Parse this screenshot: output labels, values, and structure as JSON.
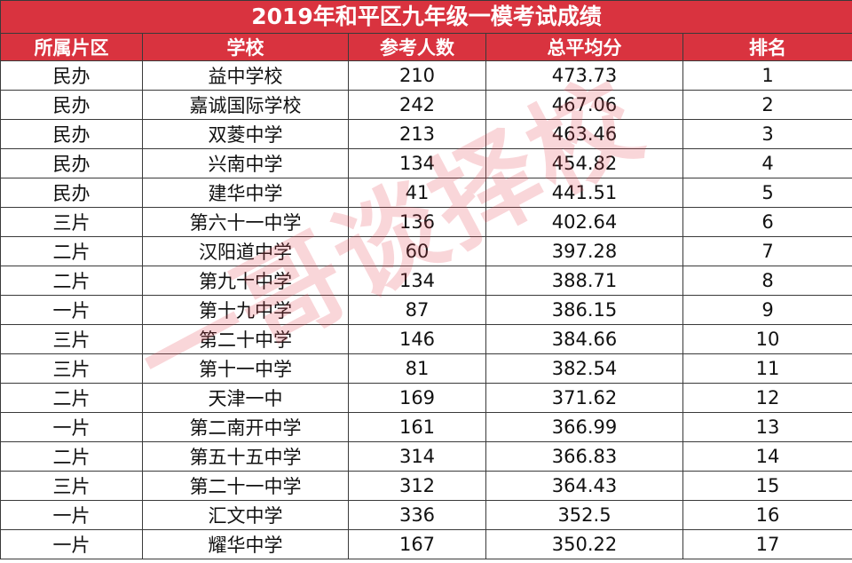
{
  "title": "2019年和平区九年级一模考试成绩",
  "headers": [
    "所属片区",
    "学校",
    "参考人数",
    "总平均分",
    "排名"
  ],
  "rows": [
    [
      "民办",
      "益中学校",
      "210",
      "473.73",
      "1"
    ],
    [
      "民办",
      "嘉诚国际学校",
      "242",
      "467.06",
      "2"
    ],
    [
      "民办",
      "双菱中学",
      "213",
      "463.46",
      "3"
    ],
    [
      "民办",
      "兴南中学",
      "134",
      "454.82",
      "4"
    ],
    [
      "民办",
      "建华中学",
      "41",
      "441.51",
      "5"
    ],
    [
      "三片",
      "第六十一中学",
      "136",
      "402.64",
      "6"
    ],
    [
      "二片",
      "汉阳道中学",
      "60",
      "397.28",
      "7"
    ],
    [
      "二片",
      "第九十中学",
      "134",
      "388.71",
      "8"
    ],
    [
      "一片",
      "第十九中学",
      "87",
      "386.15",
      "9"
    ],
    [
      "三片",
      "第二十中学",
      "146",
      "384.66",
      "10"
    ],
    [
      "三片",
      "第十一中学",
      "81",
      "382.54",
      "11"
    ],
    [
      "二片",
      "天津一中",
      "169",
      "371.62",
      "12"
    ],
    [
      "一片",
      "第二南开中学",
      "161",
      "366.99",
      "13"
    ],
    [
      "二片",
      "第五十五中学",
      "314",
      "366.83",
      "14"
    ],
    [
      "三片",
      "第二十一中学",
      "312",
      "364.43",
      "15"
    ],
    [
      "一片",
      "汇文中学",
      "336",
      "352.5",
      "16"
    ],
    [
      "一片",
      "耀华中学",
      "167",
      "350.22",
      "17"
    ]
  ],
  "watermark": "一哥谈择校",
  "colors": {
    "header_bg": "#d9333f",
    "header_text": "#ffffff",
    "watermark": "#e44650"
  }
}
